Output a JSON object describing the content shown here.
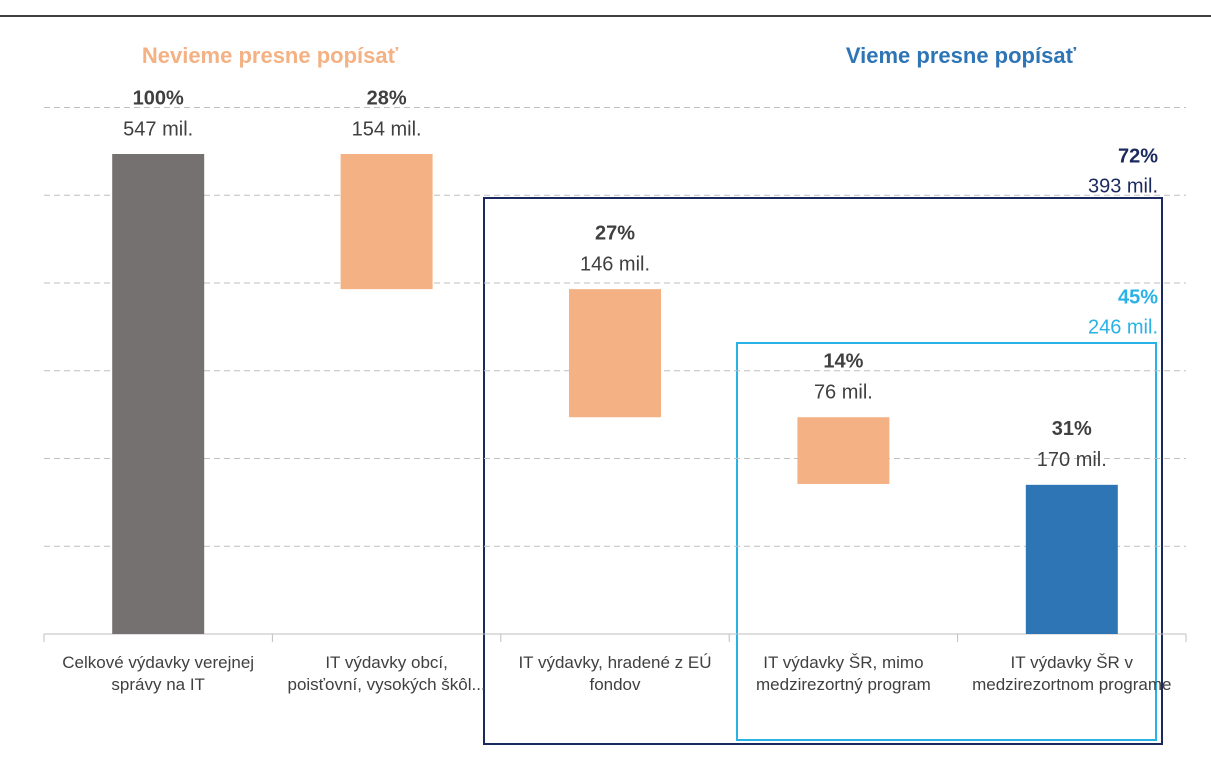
{
  "chart_data": {
    "type": "waterfall",
    "group_titles": [
      {
        "label": "Nevieme presne popísať",
        "color": "#f4b183"
      },
      {
        "label": "Vieme presne popísať",
        "color": "#2e75b6"
      }
    ],
    "categories": [
      "Celkové výdavky verejnej správy  na IT",
      "IT výdavky obcí, poisťovní, vysokých škôl...",
      "IT výdavky, hradené z EÚ fondov",
      "IT výdavky ŠR, mimo medzirezortný program",
      "IT výdavky ŠR v medzirezortnom programe"
    ],
    "values": [
      547,
      154,
      146,
      76,
      170
    ],
    "value_labels": [
      "547 mil.",
      "154 mil.",
      "146 mil.",
      "76 mil.",
      "170 mil."
    ],
    "percents": [
      100,
      28,
      27,
      14,
      31
    ],
    "percent_labels": [
      "100%",
      "28%",
      "27%",
      "14%",
      "31%"
    ],
    "measure": [
      "total",
      "decrease",
      "decrease",
      "decrease",
      "total"
    ],
    "colors": [
      "#767171",
      "#f4b183",
      "#f4b183",
      "#f4b183",
      "#2e75b6"
    ],
    "annotations": [
      {
        "percent_label": "72%",
        "label": "393 mil.",
        "color": "#1b2a5e"
      },
      {
        "percent_label": "45%",
        "label": "246 mil.",
        "color": "#29b2e6"
      }
    ],
    "ylim": [
      0,
      610
    ],
    "yticks": [
      100,
      200,
      300,
      400,
      500,
      600
    ],
    "grid": true
  }
}
